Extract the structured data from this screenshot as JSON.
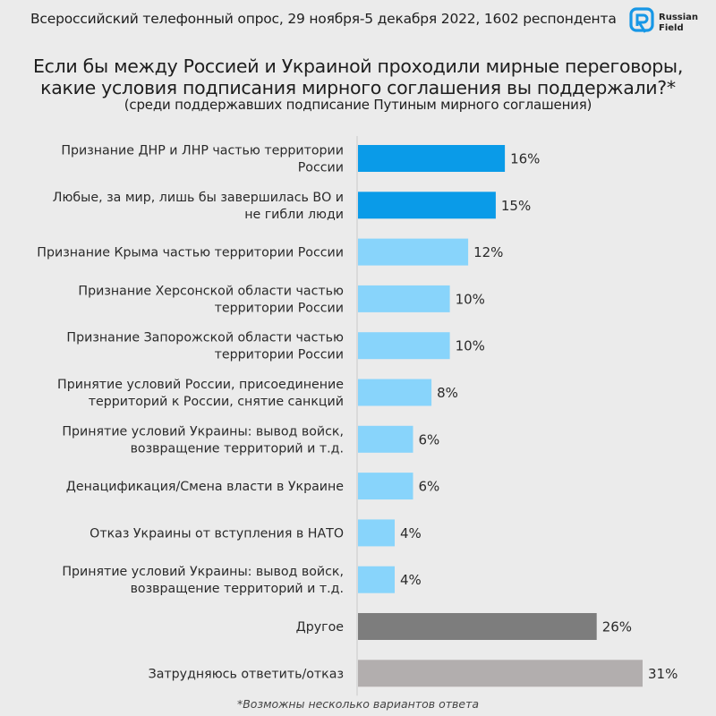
{
  "header": {
    "survey_info": "Всероссийский телефонный опрос, 29 ноября-5 декабря 2022, 1602 респондента",
    "logo_text_line1": "Russian",
    "logo_text_line2": "Field"
  },
  "title_line1": "Если бы между Россией и Украиной проходили мирные переговоры,",
  "title_line2": "какие условия подписания мирного соглашения вы поддержали?*",
  "subtitle": "(среди поддержавших подписание Путиным мирного соглашения)",
  "footnote": "*Возможны несколько вариантов ответа",
  "colors": {
    "accent": "#0a9be8",
    "light": "#88d4fb",
    "other": "#7d7d7d",
    "hard": "#b2aeae",
    "background": "#ebebeb",
    "axis": "#c8c8c8"
  },
  "chart_data": {
    "type": "bar",
    "orientation": "horizontal",
    "unit": "%",
    "categories": [
      [
        "Признание ДНР и ЛНР частью территории",
        "России"
      ],
      [
        "Любые, за мир, лишь бы завершилась ВО и",
        "не гибли люди"
      ],
      [
        "Признание Крыма частью территории России"
      ],
      [
        "Признание Херсонской области частью",
        "территории России"
      ],
      [
        "Признание Запорожской области частью",
        "территории России"
      ],
      [
        "Принятие условий России, присоединение",
        "территорий к России, снятие санкций"
      ],
      [
        "Принятие условий Украины: вывод войск,",
        "возвращение территорий и т.д."
      ],
      [
        "Денацификация/Смена власти в Украине"
      ],
      [
        "Отказ Украины от вступления в НАТО"
      ],
      [
        "Принятие условий Украины: вывод войск,",
        "возвращение территорий и т.д."
      ],
      [
        "Другое"
      ],
      [
        "Затрудняюсь ответить/отказ"
      ]
    ],
    "values": [
      16,
      15,
      12,
      10,
      10,
      8,
      6,
      6,
      4,
      4,
      26,
      31
    ],
    "labels": [
      "16%",
      "15%",
      "12%",
      "10%",
      "10%",
      "8%",
      "6%",
      "6%",
      "4%",
      "4%",
      "26%",
      "31%"
    ],
    "bar_colors": [
      "accent",
      "accent",
      "light",
      "light",
      "light",
      "light",
      "light",
      "light",
      "light",
      "light",
      "other",
      "hard"
    ],
    "xlim": [
      0,
      31
    ],
    "grid": false,
    "legend": "none"
  }
}
